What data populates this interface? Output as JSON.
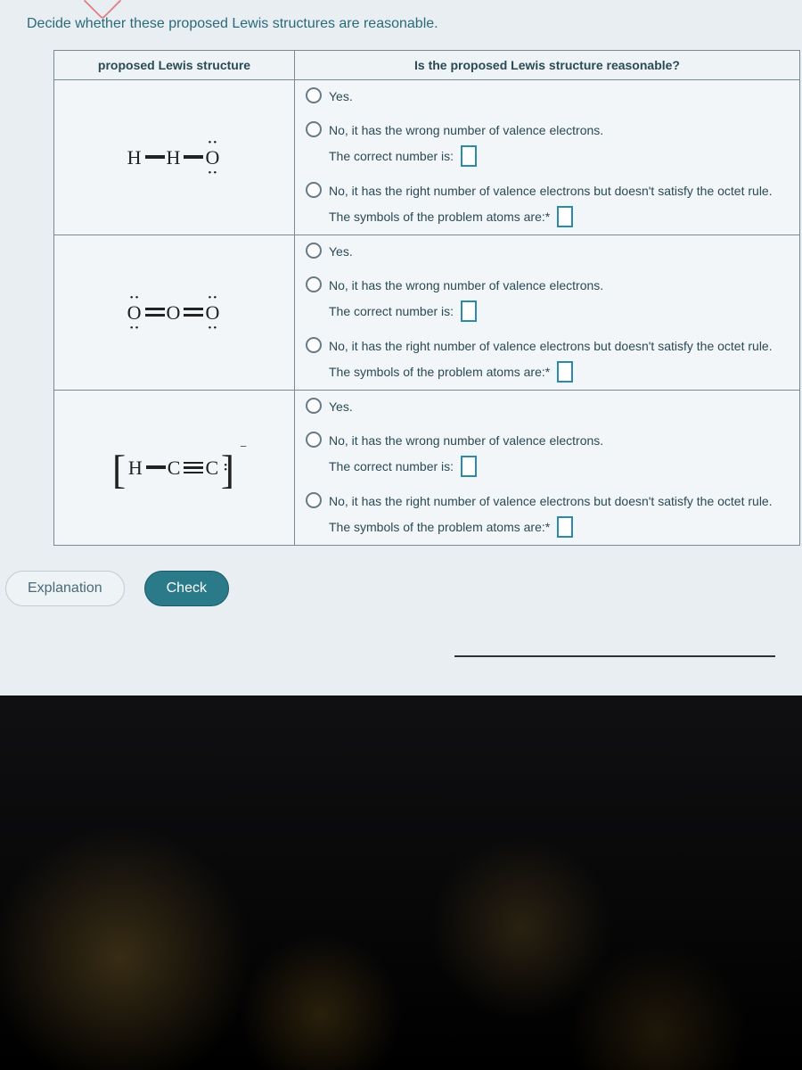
{
  "header": {
    "instruction": "Decide whether these proposed Lewis structures are reasonable."
  },
  "table": {
    "col1_header": "proposed Lewis structure",
    "col2_header": "Is the proposed Lewis structure reasonable?",
    "rows": [
      {
        "structure_id": "h-h-o",
        "opt_yes": "Yes.",
        "opt_wrong_valence": "No, it has the wrong number of valence electrons.",
        "correct_number_label": "The correct number is:",
        "opt_octet": "No, it has the right number of valence electrons but doesn't satisfy the octet rule.",
        "problem_atoms_label": "The symbols of the problem atoms are:*"
      },
      {
        "structure_id": "o-o-o",
        "opt_yes": "Yes.",
        "opt_wrong_valence": "No, it has the wrong number of valence electrons.",
        "correct_number_label": "The correct number is:",
        "opt_octet": "No, it has the right number of valence electrons but doesn't satisfy the octet rule.",
        "problem_atoms_label": "The symbols of the problem atoms are:*"
      },
      {
        "structure_id": "h-c-c",
        "opt_yes": "Yes.",
        "opt_wrong_valence": "No, it has the wrong number of valence electrons.",
        "correct_number_label": "The correct number is:",
        "opt_octet": "No, it has the right number of valence electrons but doesn't satisfy the octet rule.",
        "problem_atoms_label": "The symbols of the problem atoms are:*"
      }
    ]
  },
  "buttons": {
    "explanation": "Explanation",
    "check": "Check"
  },
  "colors": {
    "page_bg": "#e8eef2",
    "header_text": "#2a6a7a",
    "border": "#7a8a94",
    "input_border": "#2a8aa8",
    "btn_check_bg": "#2a7a8a"
  }
}
